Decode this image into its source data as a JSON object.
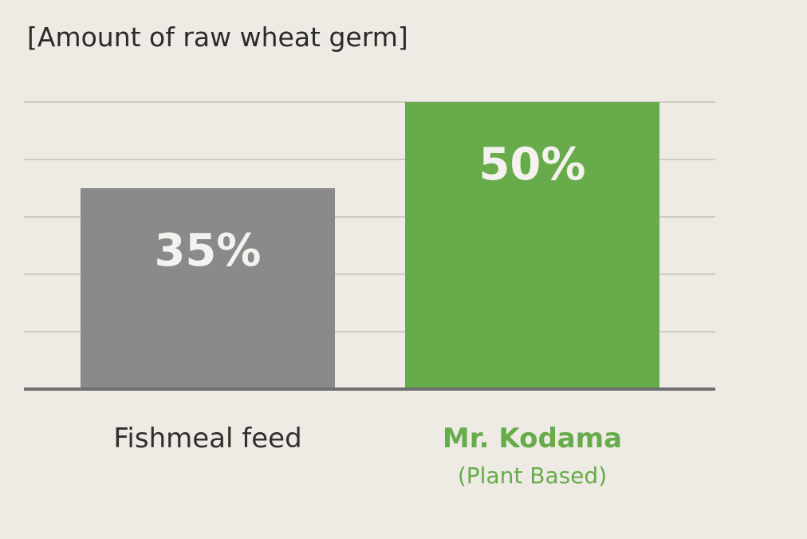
{
  "chart_data": {
    "type": "bar",
    "title": "[Amount of raw wheat germ]",
    "categories": [
      "Fishmeal feed",
      "Mr. Kodama"
    ],
    "category_sublabels": [
      "",
      "(Plant Based)"
    ],
    "values": [
      35,
      50
    ],
    "value_labels": [
      "35%",
      "50%"
    ],
    "ylim": [
      0,
      50
    ],
    "gridlines": [
      10,
      20,
      30,
      40,
      50
    ],
    "grid": true,
    "legend": "none",
    "colors": {
      "bars": [
        "#8a8a8a",
        "#68ab4b"
      ],
      "category_labels": [
        "#2f2f2f",
        "#68ab4b"
      ],
      "grid": "#cfcac1",
      "baseline": "#6f6f6f",
      "background": "#eeebe5"
    }
  }
}
